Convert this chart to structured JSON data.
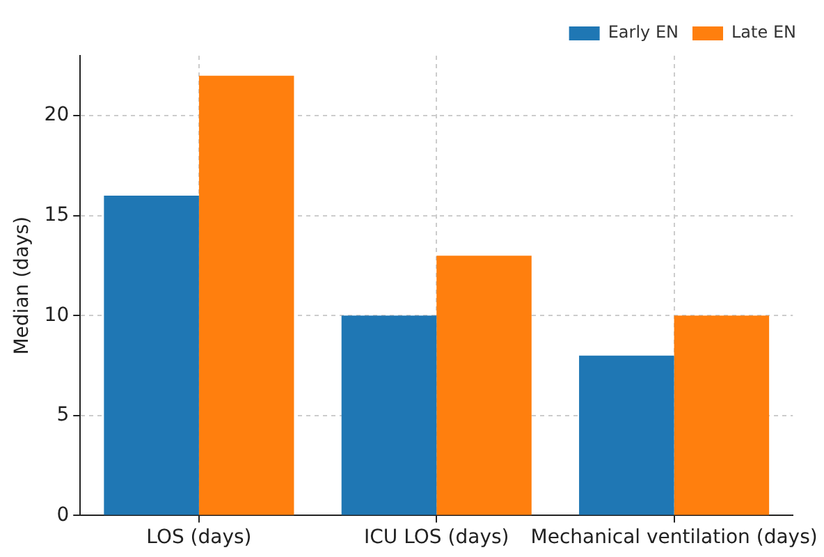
{
  "chart_data": {
    "type": "bar",
    "ylabel": "Median (days)",
    "categories": [
      "LOS (days)",
      "ICU LOS (days)",
      "Mechanical ventilation (days)"
    ],
    "series": [
      {
        "name": "Early EN",
        "color": "#1f77b4",
        "values": [
          16,
          10,
          8
        ]
      },
      {
        "name": "Late EN",
        "color": "#ff7f0e",
        "values": [
          22,
          13,
          10
        ]
      }
    ],
    "ylim": [
      0,
      23
    ],
    "yticks": [
      0,
      5,
      10,
      15,
      20
    ],
    "grid": true,
    "legend": "top right"
  }
}
